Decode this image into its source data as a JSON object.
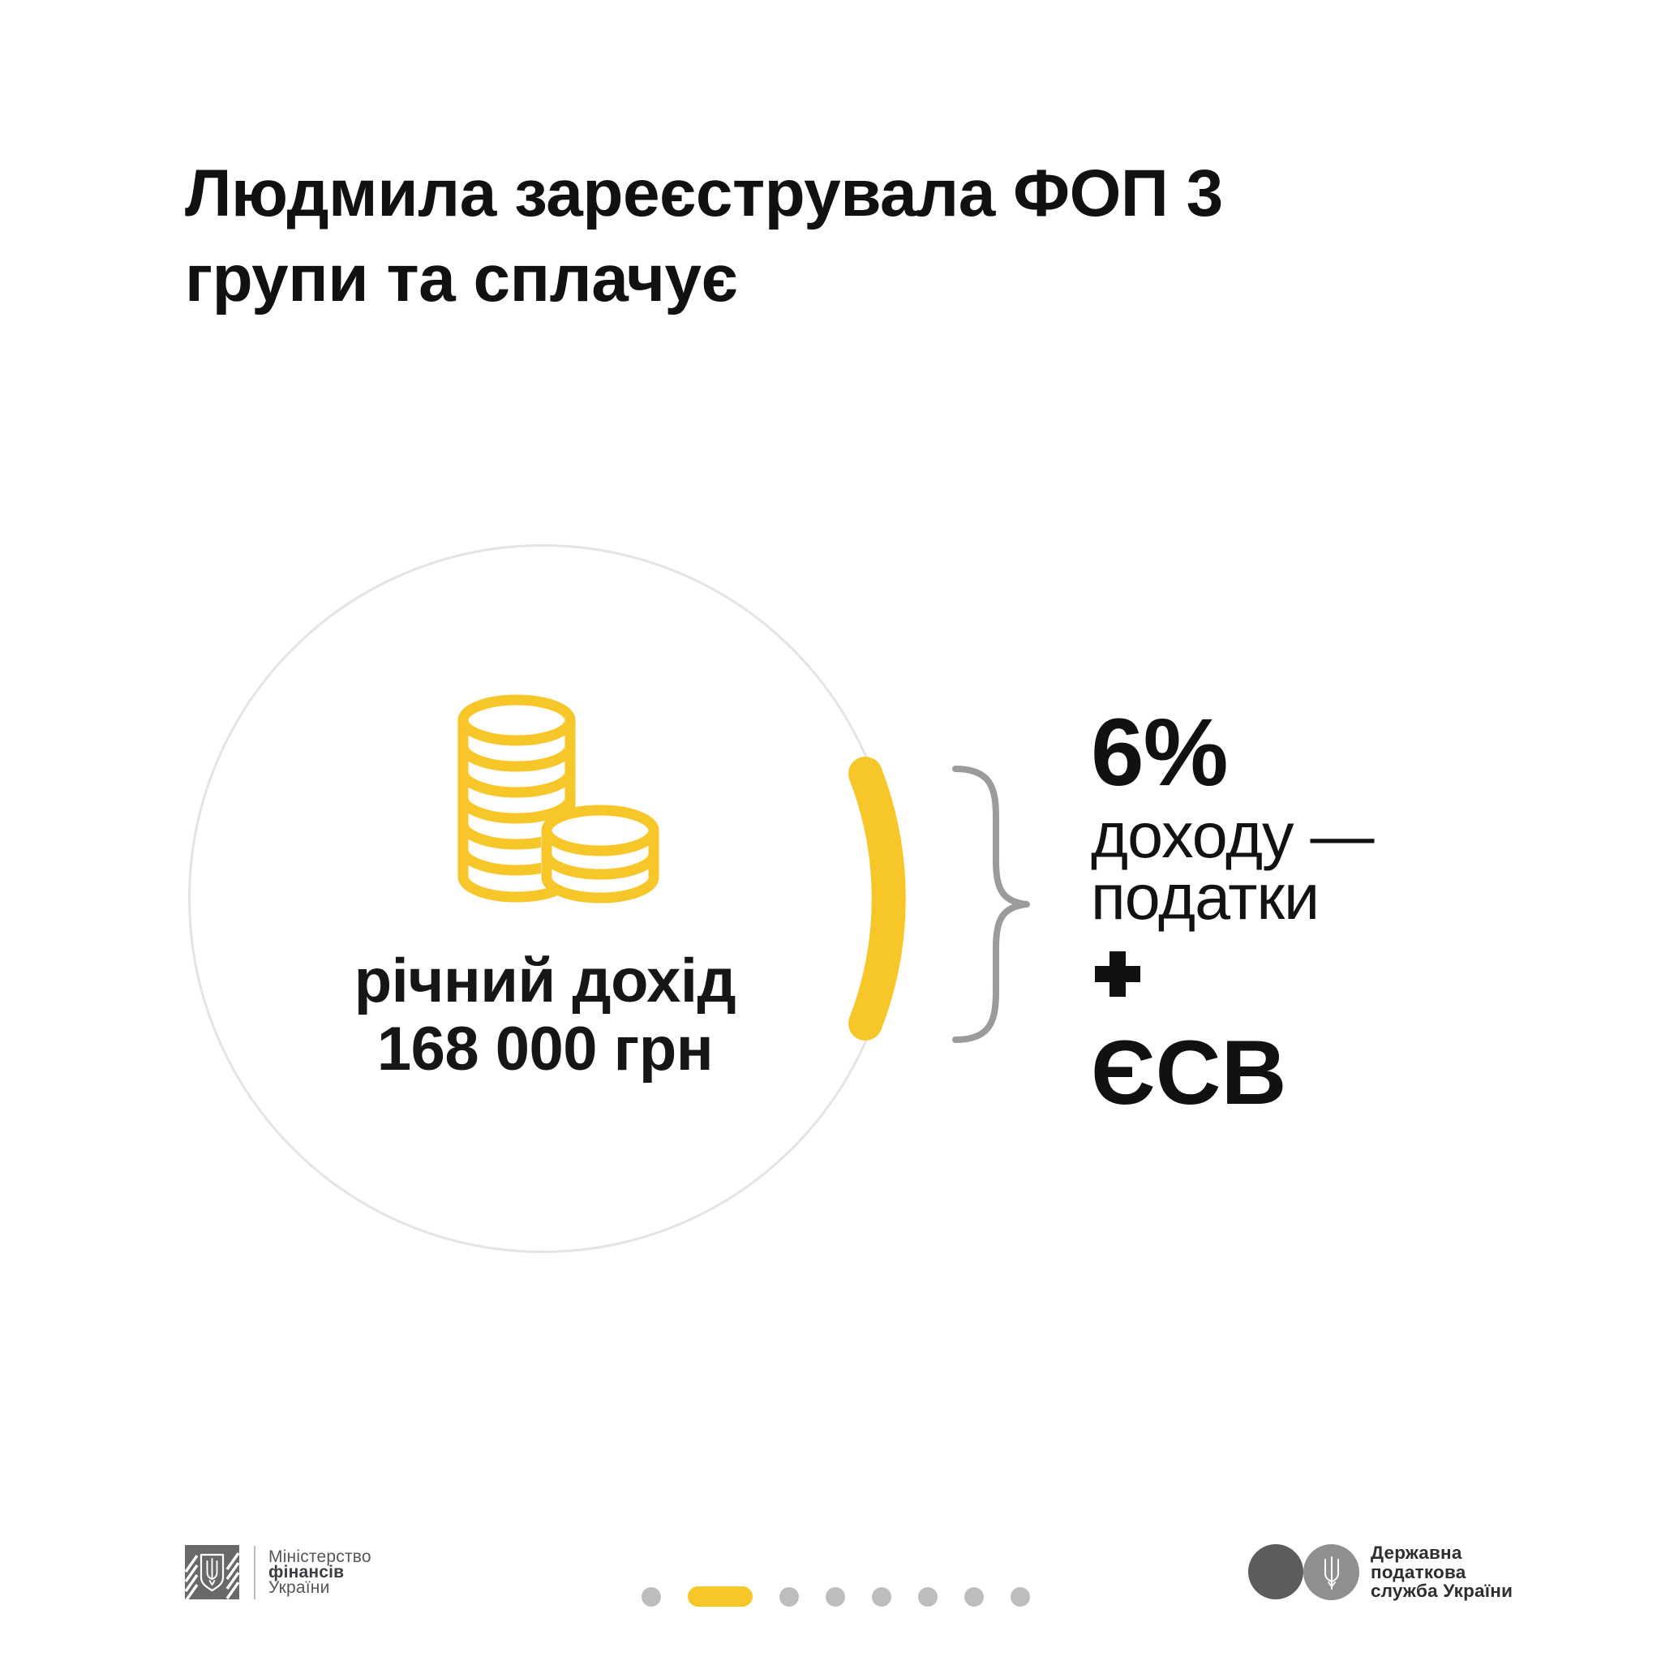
{
  "title": {
    "full": "Людмила зареєструвала ФОП 3 групи та сплачує",
    "line1": "Людмила зареєструвала ФОП 3",
    "line2": "групи та сплачує"
  },
  "income_circle": {
    "icon": "coins-stack-icon",
    "caption_line1": "річний дохід",
    "caption_line2": "168 000 грн"
  },
  "result": {
    "percent": "6%",
    "rate_line1": "доходу —",
    "rate_line2": "податки",
    "plus_icon": "plus-icon",
    "esv": "ЄСВ"
  },
  "footer": {
    "minfin_logo": {
      "emblem": "minfin-trident-emblem-icon",
      "line1": "Міністерство",
      "line2": "фінансів",
      "line3": "України"
    },
    "tax_logo": {
      "emblem": "tax-service-trident-icon",
      "line1": "Державна",
      "line2": "податкова",
      "line3": "служба України"
    },
    "pagination": {
      "active_index": 1,
      "items": [
        "dot",
        "active",
        "dot",
        "dot",
        "dot",
        "dot",
        "dot",
        "dot"
      ]
    }
  },
  "colors": {
    "yellow": "#F7C628",
    "ink": "#111111",
    "circle_border": "#E4E4E4",
    "brace": "#9B9B9B",
    "dot": "#BDBDBD",
    "minfin_gray": "#696969",
    "tax_circle_dark": "#5C5C5C",
    "tax_circle_light": "#8F8F8F"
  }
}
